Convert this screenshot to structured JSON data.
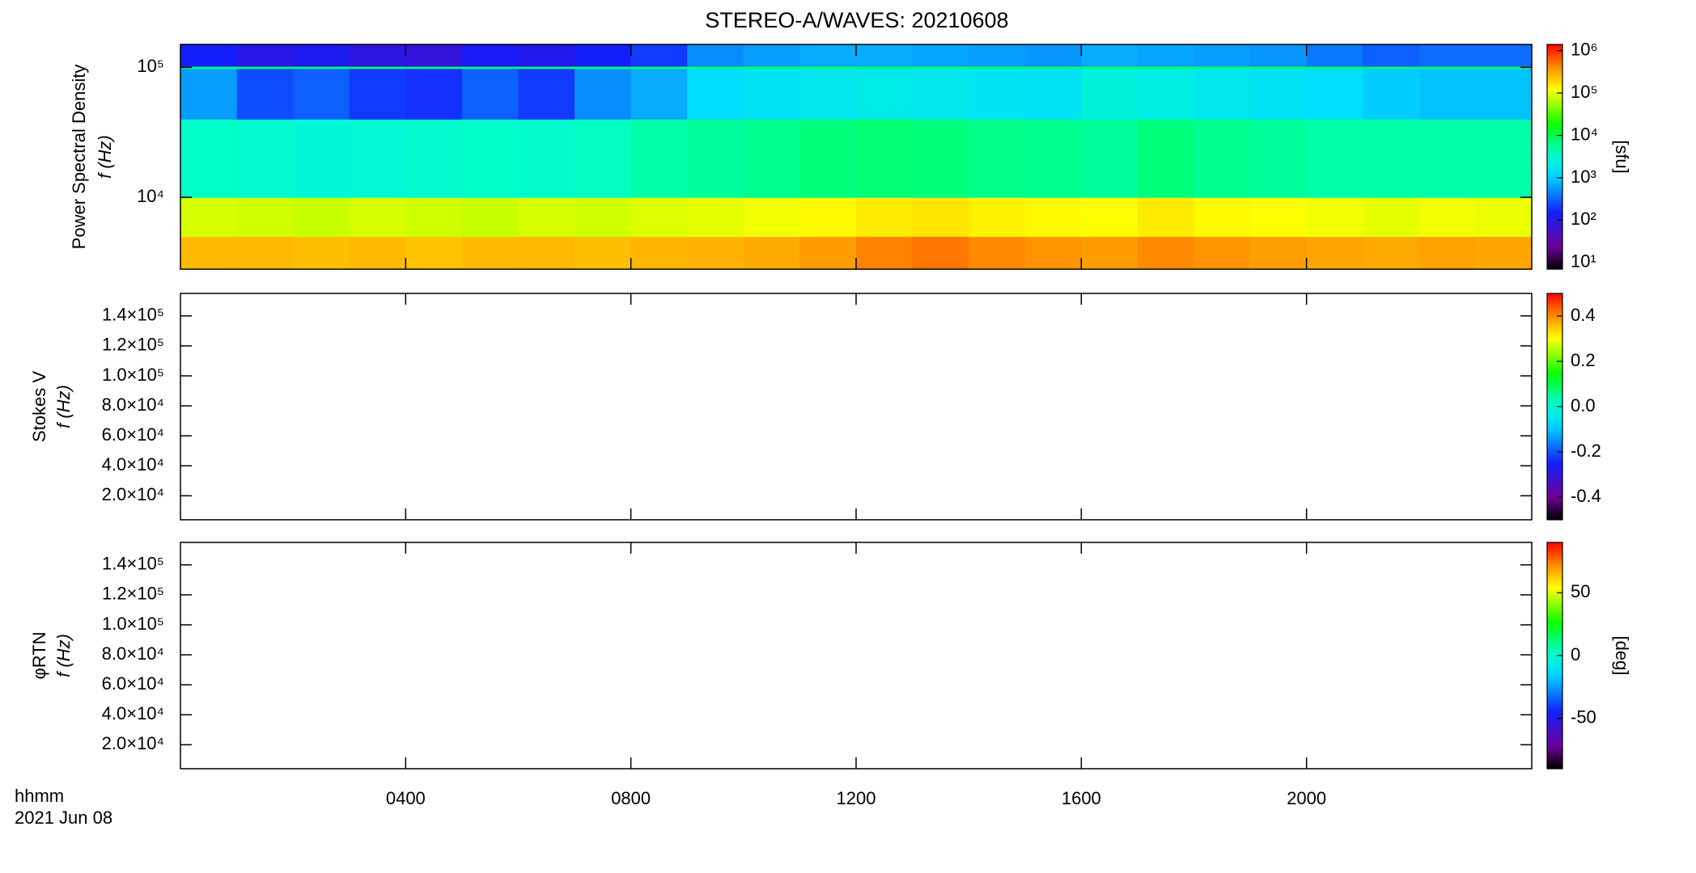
{
  "chart_data": [
    {
      "type": "heatmap",
      "title": "STEREO-A/WAVES: 20210608",
      "y_label": "Power Spectral Density",
      "y_label_2": "f (Hz)",
      "xlim": [
        0,
        24
      ],
      "xticks": [
        {
          "value": 4,
          "label": "0400"
        },
        {
          "value": 8,
          "label": "0800"
        },
        {
          "value": 12,
          "label": "1200"
        },
        {
          "value": 16,
          "label": "1600"
        },
        {
          "value": 20,
          "label": "2000"
        }
      ],
      "ylim": [
        2800,
        150000
      ],
      "yscale": "log",
      "yticks": [
        {
          "value": 10000,
          "label": "10⁴"
        },
        {
          "value": 100000,
          "label": "10⁵"
        }
      ],
      "x": [
        0,
        1,
        2,
        3,
        4,
        5,
        6,
        7,
        8,
        9,
        10,
        11,
        12,
        13,
        14,
        15,
        16,
        17,
        18,
        19,
        20,
        21,
        22,
        23,
        24
      ],
      "y": [
        2800,
        5000,
        10000,
        40000,
        98000,
        102000,
        150000
      ],
      "z": [
        [
          250000,
          260000,
          240000,
          250000,
          230000,
          250000,
          260000,
          240000,
          270000,
          280000,
          300000,
          350000,
          450000,
          500000,
          420000,
          380000,
          350000,
          420000,
          380000,
          340000,
          320000,
          300000,
          330000,
          310000
        ],
        [
          90000,
          85000,
          80000,
          90000,
          85000,
          80000,
          90000,
          85000,
          95000,
          100000,
          110000,
          130000,
          150000,
          160000,
          140000,
          130000,
          120000,
          150000,
          130000,
          120000,
          110000,
          100000,
          110000,
          105000
        ],
        [
          4000,
          3500,
          3000,
          3200,
          3500,
          3800,
          3600,
          4200,
          5000,
          5500,
          6000,
          7000,
          7500,
          7000,
          6500,
          6000,
          5500,
          7000,
          6000,
          5500,
          5000,
          5000,
          5000,
          5000
        ],
        [
          600,
          250,
          300,
          200,
          180,
          300,
          200,
          500,
          700,
          1200,
          1500,
          1800,
          2000,
          1800,
          1600,
          1500,
          2500,
          2200,
          1800,
          1500,
          1300,
          1000,
          900,
          900
        ],
        [
          8000,
          8000,
          8000,
          8000,
          8000,
          8000,
          8000,
          8000,
          8000,
          8000,
          8000,
          8000,
          8000,
          8000,
          8000,
          8000,
          8000,
          8000,
          8000,
          8000,
          8000,
          8000,
          8000,
          8000
        ],
        [
          150,
          100,
          120,
          90,
          80,
          130,
          110,
          150,
          200,
          500,
          600,
          700,
          700,
          650,
          600,
          550,
          700,
          650,
          600,
          550,
          400,
          300,
          350,
          350
        ]
      ],
      "colormap": "rainbow",
      "clim": [
        7,
        1400000
      ],
      "cscale": "log",
      "cticks": [
        {
          "value": 10,
          "label": "10¹"
        },
        {
          "value": 100,
          "label": "10²"
        },
        {
          "value": 1000,
          "label": "10³"
        },
        {
          "value": 10000,
          "label": "10⁴"
        },
        {
          "value": 100000,
          "label": "10⁵"
        },
        {
          "value": 1000000,
          "label": "10⁶"
        }
      ],
      "c_label": "[sfu]"
    },
    {
      "type": "heatmap",
      "y_label": "Stokes V",
      "y_label_2": "f (Hz)",
      "xlim": [
        0,
        24
      ],
      "xticks": [
        {
          "value": 4,
          "label": "0400"
        },
        {
          "value": 8,
          "label": "0800"
        },
        {
          "value": 12,
          "label": "1200"
        },
        {
          "value": 16,
          "label": "1600"
        },
        {
          "value": 20,
          "label": "2000"
        }
      ],
      "ylim": [
        4000,
        155000
      ],
      "yscale": "linear",
      "yticks": [
        {
          "value": 20000,
          "label": "2.0×10⁴"
        },
        {
          "value": 40000,
          "label": "4.0×10⁴"
        },
        {
          "value": 60000,
          "label": "6.0×10⁴"
        },
        {
          "value": 80000,
          "label": "8.0×10⁴"
        },
        {
          "value": 100000,
          "label": "1.0×10⁵"
        },
        {
          "value": 120000,
          "label": "1.2×10⁵"
        },
        {
          "value": 140000,
          "label": "1.4×10⁵"
        }
      ],
      "colormap": "rainbow",
      "clim": [
        -0.5,
        0.5
      ],
      "cscale": "linear",
      "cticks": [
        -0.4,
        -0.2,
        {
          "value": 0,
          "label": "0.0"
        },
        0.2,
        0.4
      ]
    },
    {
      "type": "heatmap",
      "y_label": "φRTN",
      "y_label_2": "f (Hz)",
      "x_label": "hhmm",
      "date_label": "2021 Jun 08",
      "xlim": [
        0,
        24
      ],
      "xticks": [
        {
          "value": 4,
          "label": "0400"
        },
        {
          "value": 8,
          "label": "0800"
        },
        {
          "value": 12,
          "label": "1200"
        },
        {
          "value": 16,
          "label": "1600"
        },
        {
          "value": 20,
          "label": "2000"
        }
      ],
      "ylim": [
        4000,
        155000
      ],
      "yscale": "linear",
      "yticks": [
        {
          "value": 20000,
          "label": "2.0×10⁴"
        },
        {
          "value": 40000,
          "label": "4.0×10⁴"
        },
        {
          "value": 60000,
          "label": "6.0×10⁴"
        },
        {
          "value": 80000,
          "label": "8.0×10⁴"
        },
        {
          "value": 100000,
          "label": "1.0×10⁵"
        },
        {
          "value": 120000,
          "label": "1.2×10⁵"
        },
        {
          "value": 140000,
          "label": "1.4×10⁵"
        }
      ],
      "colormap": "rainbow",
      "clim": [
        -90,
        90
      ],
      "cscale": "linear",
      "cticks": [
        -50,
        0,
        50
      ],
      "c_label": "[deg]"
    }
  ]
}
